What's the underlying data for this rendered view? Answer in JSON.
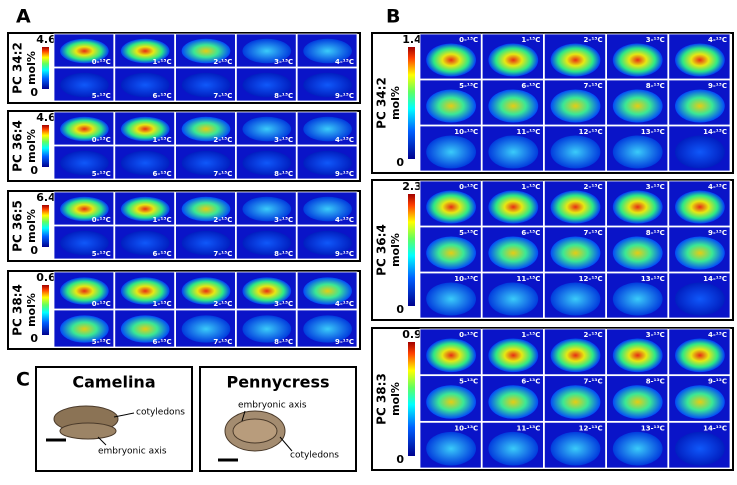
{
  "panel_a": {
    "label": "A",
    "groups": [
      {
        "name": "PC 34:2",
        "max": 4.6,
        "min": 0,
        "unit": "mol%",
        "tiles": [
          "0-¹³C",
          "1-¹³C",
          "2-¹³C",
          "3-¹³C",
          "4-¹³C",
          "5-¹³C",
          "6-¹³C",
          "7-¹³C",
          "8-¹³C",
          "9-¹³C"
        ]
      },
      {
        "name": "PC 36:4",
        "max": 4.6,
        "min": 0,
        "unit": "mol%",
        "tiles": [
          "0-¹³C",
          "1-¹³C",
          "2-¹³C",
          "3-¹³C",
          "4-¹³C",
          "5-¹³C",
          "6-¹³C",
          "7-¹³C",
          "8-¹³C",
          "9-¹³C"
        ]
      },
      {
        "name": "PC 36:5",
        "max": 6.4,
        "min": 0,
        "unit": "mol%",
        "tiles": [
          "0-¹³C",
          "1-¹³C",
          "2-¹³C",
          "3-¹³C",
          "4-¹³C",
          "5-¹³C",
          "6-¹³C",
          "7-¹³C",
          "8-¹³C",
          "9-¹³C"
        ]
      },
      {
        "name": "PC 38:4",
        "max": 0.6,
        "min": 0,
        "unit": "mol%",
        "tiles": [
          "0-¹³C",
          "1-¹³C",
          "2-¹³C",
          "3-¹³C",
          "4-¹³C",
          "5-¹³C",
          "6-¹³C",
          "7-¹³C",
          "8-¹³C",
          "9-¹³C"
        ]
      }
    ]
  },
  "panel_b": {
    "label": "B",
    "groups": [
      {
        "name": "PC 34:2",
        "max": 1.4,
        "min": 0,
        "unit": "mol%",
        "tiles": [
          "0-¹³C",
          "1-¹³C",
          "2-¹³C",
          "3-¹³C",
          "4-¹³C",
          "5-¹³C",
          "6-¹³C",
          "7-¹³C",
          "8-¹³C",
          "9-¹³C",
          "10-¹³C",
          "11-¹³C",
          "12-¹³C",
          "13-¹³C",
          "14-¹³C"
        ]
      },
      {
        "name": "PC 36:4",
        "max": 2.3,
        "min": 0,
        "unit": "mol%",
        "tiles": [
          "0-¹³C",
          "1-¹³C",
          "2-¹³C",
          "3-¹³C",
          "4-¹³C",
          "5-¹³C",
          "6-¹³C",
          "7-¹³C",
          "8-¹³C",
          "9-¹³C",
          "10-¹³C",
          "11-¹³C",
          "12-¹³C",
          "13-¹³C",
          "14-¹³C"
        ]
      },
      {
        "name": "PC 38:3",
        "max": 0.9,
        "min": 0,
        "unit": "mol%",
        "tiles": [
          "0-¹³C",
          "1-¹³C",
          "2-¹³C",
          "3-¹³C",
          "4-¹³C",
          "5-¹³C",
          "6-¹³C",
          "7-¹³C",
          "8-¹³C",
          "9-¹³C",
          "10-¹³C",
          "11-¹³C",
          "12-¹³C",
          "13-¹³C",
          "14-¹³C"
        ]
      }
    ]
  },
  "panel_c": {
    "label": "C",
    "seeds": [
      {
        "name": "Camelina",
        "cotyledons": "cotyledons",
        "axis": "embryonic axis"
      },
      {
        "name": "Pennycress",
        "cotyledons": "cotyledons",
        "axis": "embryonic axis"
      }
    ]
  }
}
